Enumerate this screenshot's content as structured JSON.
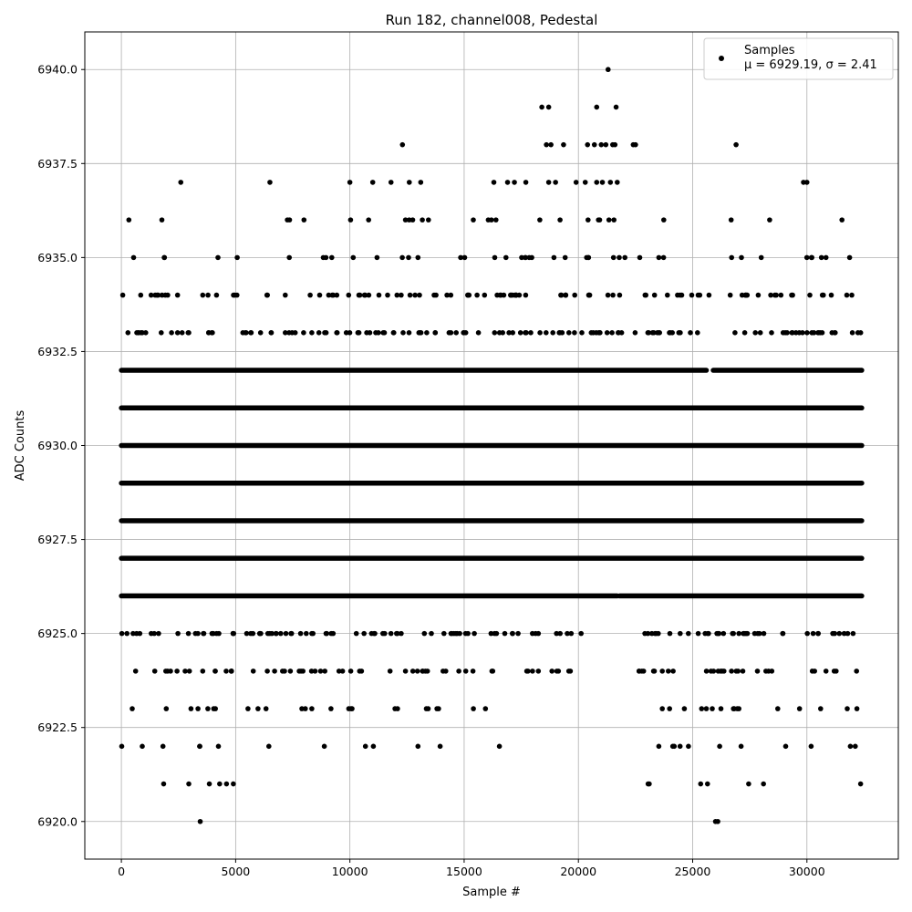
{
  "chart_data": {
    "type": "scatter",
    "title": "Run 182, channel008, Pedestal",
    "xlabel": "Sample #",
    "ylabel": "ADC Counts",
    "xlim": [
      -1600,
      34000
    ],
    "ylim": [
      6919.0,
      6941.0
    ],
    "xticks": [
      0,
      5000,
      10000,
      15000,
      20000,
      25000,
      30000
    ],
    "xtick_labels": [
      "0",
      "5000",
      "10000",
      "15000",
      "20000",
      "25000",
      "30000"
    ],
    "yticks": [
      6920.0,
      6922.5,
      6925.0,
      6927.5,
      6930.0,
      6932.5,
      6935.0,
      6937.5,
      6940.0
    ],
    "ytick_labels": [
      "6920.0",
      "6922.5",
      "6925.0",
      "6927.5",
      "6930.0",
      "6932.5",
      "6935.0",
      "6937.5",
      "6940.0"
    ],
    "grid": true,
    "legend_position": "top-right",
    "color": "#000000",
    "series": [
      {
        "name": "Samples",
        "label_line2": "μ = 6929.19, σ = 2.41",
        "mu": 6929.19,
        "sigma": 2.41,
        "x_range": [
          0,
          32400
        ],
        "outliers": [
          {
            "x": 21300,
            "y": 6940
          },
          {
            "x": 18400,
            "y": 6939
          },
          {
            "x": 18700,
            "y": 6939
          },
          {
            "x": 20800,
            "y": 6939
          },
          {
            "x": 21650,
            "y": 6939
          },
          {
            "x": 12300,
            "y": 6938
          },
          {
            "x": 18600,
            "y": 6938
          },
          {
            "x": 18800,
            "y": 6938
          },
          {
            "x": 19350,
            "y": 6938
          },
          {
            "x": 20400,
            "y": 6938
          },
          {
            "x": 20700,
            "y": 6938
          },
          {
            "x": 21000,
            "y": 6938
          },
          {
            "x": 21200,
            "y": 6938
          },
          {
            "x": 21500,
            "y": 6938
          },
          {
            "x": 21600,
            "y": 6938
          },
          {
            "x": 22400,
            "y": 6938
          },
          {
            "x": 22500,
            "y": 6938
          },
          {
            "x": 26900,
            "y": 6938
          },
          {
            "x": 2600,
            "y": 6937
          },
          {
            "x": 6500,
            "y": 6937
          },
          {
            "x": 10000,
            "y": 6937
          },
          {
            "x": 11000,
            "y": 6937
          },
          {
            "x": 11800,
            "y": 6937
          },
          {
            "x": 12600,
            "y": 6937
          },
          {
            "x": 13100,
            "y": 6937
          },
          {
            "x": 16300,
            "y": 6937
          },
          {
            "x": 16900,
            "y": 6937
          },
          {
            "x": 17200,
            "y": 6937
          },
          {
            "x": 17700,
            "y": 6937
          },
          {
            "x": 18700,
            "y": 6937
          },
          {
            "x": 19000,
            "y": 6937
          },
          {
            "x": 19900,
            "y": 6937
          },
          {
            "x": 20300,
            "y": 6937
          },
          {
            "x": 20800,
            "y": 6937
          },
          {
            "x": 21050,
            "y": 6937
          },
          {
            "x": 21400,
            "y": 6937
          },
          {
            "x": 21700,
            "y": 6937
          },
          {
            "x": 29850,
            "y": 6937
          },
          {
            "x": 30000,
            "y": 6937
          },
          {
            "x": 3450,
            "y": 6920
          },
          {
            "x": 26000,
            "y": 6920
          },
          {
            "x": 26100,
            "y": 6920
          },
          {
            "x": 1850,
            "y": 6921
          },
          {
            "x": 2950,
            "y": 6921
          },
          {
            "x": 3850,
            "y": 6921
          },
          {
            "x": 4300,
            "y": 6921
          },
          {
            "x": 4600,
            "y": 6921
          },
          {
            "x": 4900,
            "y": 6921
          },
          {
            "x": 23050,
            "y": 6921
          },
          {
            "x": 23100,
            "y": 6921
          },
          {
            "x": 25350,
            "y": 6921
          },
          {
            "x": 25650,
            "y": 6921
          },
          {
            "x": 27450,
            "y": 6921
          },
          {
            "x": 28100,
            "y": 6921
          },
          {
            "x": 32350,
            "y": 6921
          }
        ],
        "bands": [
          {
            "y": 6936,
            "coverage": [
              [
                0,
                500
              ],
              [
                1500,
                2400
              ],
              [
                6000,
                8000
              ],
              [
                9200,
                14000
              ],
              [
                14500,
                22600
              ],
              [
                23700,
                23800
              ],
              [
                26600,
                26900
              ],
              [
                28350,
                28400
              ],
              [
                30800,
                31600
              ]
            ],
            "density": 0.25
          },
          {
            "y": 6935,
            "coverage": [
              [
                100,
                600
              ],
              [
                1500,
                2400
              ],
              [
                3900,
                4300
              ],
              [
                5000,
                5400
              ],
              [
                7300,
                7600
              ],
              [
                8200,
                10200
              ],
              [
                11000,
                11400
              ],
              [
                12000,
                13300
              ],
              [
                14000,
                23200
              ],
              [
                23500,
                24400
              ],
              [
                26600,
                27400
              ],
              [
                28000,
                28600
              ],
              [
                29300,
                32500
              ]
            ],
            "density": 0.35
          },
          {
            "y": 6934,
            "coverage": [
              [
                0,
                2900
              ],
              [
                3400,
                4200
              ],
              [
                4800,
                23000
              ],
              [
                23000,
                25800
              ],
              [
                26600,
                32400
              ]
            ],
            "density": 0.6
          },
          {
            "y": 6933,
            "coverage": [
              [
                0,
                3000
              ],
              [
                3400,
                4200
              ],
              [
                4800,
                25400
              ],
              [
                26600,
                32400
              ]
            ],
            "density": 0.8
          },
          {
            "y": 6932,
            "coverage": [
              [
                0,
                25600
              ],
              [
                25900,
                32400
              ]
            ],
            "density": 1.0
          },
          {
            "y": 6931,
            "coverage": [
              [
                0,
                32400
              ]
            ],
            "density": 1.0
          },
          {
            "y": 6930,
            "coverage": [
              [
                0,
                32400
              ]
            ],
            "density": 1.0
          },
          {
            "y": 6929,
            "coverage": [
              [
                0,
                32400
              ]
            ],
            "density": 1.0
          },
          {
            "y": 6928,
            "coverage": [
              [
                0,
                32400
              ]
            ],
            "density": 1.0
          },
          {
            "y": 6927,
            "coverage": [
              [
                0,
                32400
              ]
            ],
            "density": 1.0
          },
          {
            "y": 6926,
            "coverage": [
              [
                0,
                21700
              ],
              [
                21800,
                32400
              ]
            ],
            "density": 0.95
          },
          {
            "y": 6925,
            "coverage": [
              [
                0,
                5000
              ],
              [
                5300,
                19300
              ],
              [
                19500,
                20300
              ],
              [
                22600,
                32400
              ]
            ],
            "density": 0.75
          },
          {
            "y": 6924,
            "coverage": [
              [
                0,
                5000
              ],
              [
                5700,
                15800
              ],
              [
                16100,
                19800
              ],
              [
                22600,
                32400
              ]
            ],
            "density": 0.55
          },
          {
            "y": 6923,
            "coverage": [
              [
                0,
                600
              ],
              [
                1600,
                2000
              ],
              [
                2600,
                5000
              ],
              [
                5500,
                7000
              ],
              [
                7300,
                10600
              ],
              [
                11700,
                14300
              ],
              [
                15300,
                16100
              ],
              [
                22600,
                27500
              ],
              [
                28700,
                29800
              ],
              [
                30500,
                30600
              ],
              [
                31500,
                32400
              ]
            ],
            "density": 0.4
          },
          {
            "y": 6922,
            "coverage": [
              [
                0,
                100
              ],
              [
                900,
                1000
              ],
              [
                1800,
                1900
              ],
              [
                2900,
                4400
              ],
              [
                6100,
                6600
              ],
              [
                8700,
                9500
              ],
              [
                10400,
                11400
              ],
              [
                12800,
                13100
              ],
              [
                13700,
                14300
              ],
              [
                16500,
                16600
              ],
              [
                23000,
                27400
              ],
              [
                28800,
                29200
              ],
              [
                30100,
                30200
              ],
              [
                31400,
                32400
              ]
            ],
            "density": 0.3
          }
        ]
      }
    ]
  }
}
